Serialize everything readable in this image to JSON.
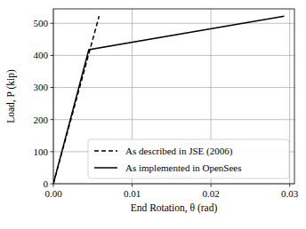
{
  "chart_data": {
    "type": "line",
    "x_label": "End Rotation, θ (rad)",
    "y_label": "Load, P (kip)",
    "series": [
      {
        "name": "As described in JSE (2006)",
        "color": "#000000",
        "line_style": "dashed",
        "x": [
          0,
          0.0058
        ],
        "values": [
          0,
          522
        ]
      },
      {
        "name": "As implemented in OpenSees",
        "color": "#000000",
        "line_style": "solid",
        "x": [
          0,
          0.0045,
          0.0293
        ],
        "values": [
          0,
          418,
          522
        ]
      }
    ],
    "xlim": [
      0,
      0.0306
    ],
    "ylim": [
      0,
      545
    ],
    "xticks": [
      {
        "value": 0,
        "label": "0.00"
      },
      0.01,
      0.02,
      0.03
    ],
    "yticks": [
      0,
      100,
      200,
      300,
      400,
      500
    ],
    "grid": true,
    "legend": "lower right"
  }
}
